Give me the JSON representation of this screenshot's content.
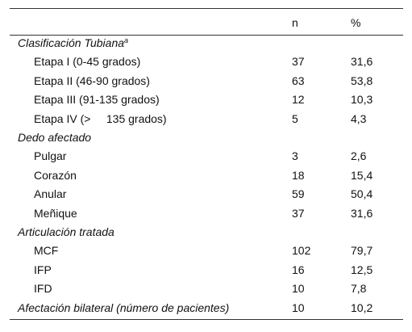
{
  "table": {
    "header": [
      "n",
      "%"
    ],
    "sections": [
      {
        "title": "Clasificación Tubiana",
        "note": "a",
        "rows": [
          [
            "Etapa I (0-45 grados)",
            "37",
            "31,6"
          ],
          [
            "Etapa II (46-90 grados)",
            "63",
            "53,8"
          ],
          [
            "Etapa III (91-135 grados)",
            "12",
            "10,3"
          ],
          [
            "Etapa IV (>     135 grados)",
            "5",
            "4,3"
          ]
        ]
      },
      {
        "title": "Dedo afectado",
        "rows": [
          [
            "Pulgar",
            "3",
            "2,6"
          ],
          [
            "Corazón",
            "18",
            "15,4"
          ],
          [
            "Anular",
            "59",
            "50,4"
          ],
          [
            "Meñique",
            "37",
            "31,6"
          ]
        ]
      },
      {
        "title": "Articulación tratada",
        "rows": [
          [
            "MCF",
            "102",
            "79,7"
          ],
          [
            "IFP",
            "16",
            "12,5"
          ],
          [
            "IFD",
            "10",
            "7,8"
          ]
        ]
      }
    ],
    "footer_row": [
      "Afectación bilateral (número de pacientes)",
      "10",
      "10,2"
    ]
  }
}
